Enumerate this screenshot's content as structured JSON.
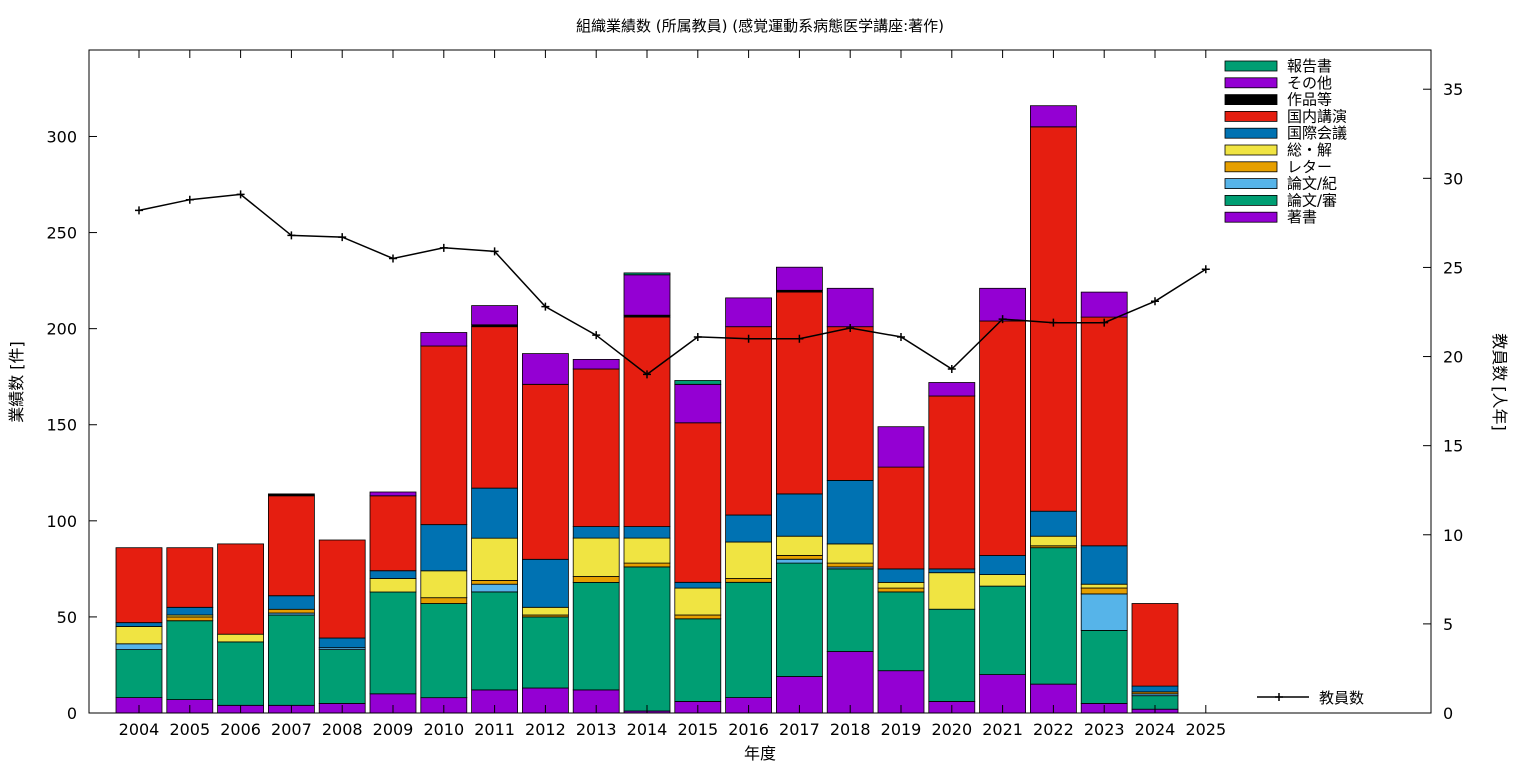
{
  "chart_data": {
    "type": "bar",
    "title": "組織業績数 (所属教員) (感覚運動系病態医学講座:著作)",
    "xlabel": "年度",
    "ylabel": "業績数 [件]",
    "y2label": "教員数 [人年]",
    "categories": [
      "2004",
      "2005",
      "2006",
      "2007",
      "2008",
      "2009",
      "2010",
      "2011",
      "2012",
      "2013",
      "2014",
      "2015",
      "2016",
      "2017",
      "2018",
      "2019",
      "2020",
      "2021",
      "2022",
      "2023",
      "2024",
      "2025"
    ],
    "ylim": [
      0,
      345
    ],
    "y2lim": [
      0,
      37.2
    ],
    "yticks": [
      0,
      50,
      100,
      150,
      200,
      250,
      300
    ],
    "y2ticks": [
      0,
      5,
      10,
      15,
      20,
      25,
      30,
      35
    ],
    "legend_position": "top-right",
    "stacked": true,
    "series": [
      {
        "name": "著書",
        "color": "#9400d3",
        "values": [
          8,
          7,
          4,
          4,
          5,
          10,
          8,
          12,
          13,
          12,
          1,
          6,
          8,
          19,
          32,
          22,
          6,
          20,
          15,
          5,
          2,
          0
        ]
      },
      {
        "name": "論文/審",
        "color": "#009e73",
        "values": [
          25,
          41,
          33,
          47,
          28,
          53,
          49,
          51,
          37,
          56,
          75,
          43,
          60,
          59,
          43,
          41,
          48,
          46,
          71,
          38,
          7,
          0
        ]
      },
      {
        "name": "論文/紀",
        "color": "#56b4e9",
        "values": [
          3,
          0,
          0,
          1,
          1,
          0,
          0,
          4,
          0,
          0,
          0,
          0,
          0,
          2,
          1,
          0,
          0,
          0,
          0,
          19,
          1,
          0
        ]
      },
      {
        "name": "レター",
        "color": "#e69f00",
        "values": [
          0,
          2,
          0,
          2,
          0,
          0,
          3,
          2,
          1,
          3,
          2,
          2,
          2,
          2,
          2,
          2,
          0,
          0,
          1,
          3,
          1,
          0
        ]
      },
      {
        "name": "総・解",
        "color": "#f0e442",
        "values": [
          9,
          1,
          4,
          0,
          0,
          7,
          14,
          22,
          4,
          20,
          13,
          14,
          19,
          10,
          10,
          3,
          19,
          6,
          5,
          2,
          0,
          0
        ]
      },
      {
        "name": "国際会議",
        "color": "#0072b2",
        "values": [
          2,
          4,
          0,
          7,
          5,
          4,
          24,
          26,
          25,
          6,
          6,
          3,
          14,
          22,
          33,
          7,
          2,
          10,
          13,
          20,
          3,
          0
        ]
      },
      {
        "name": "国内講演",
        "color": "#e51e10",
        "values": [
          39,
          31,
          47,
          52,
          51,
          39,
          93,
          84,
          91,
          82,
          109,
          83,
          98,
          105,
          80,
          53,
          90,
          122,
          200,
          119,
          43,
          0
        ]
      },
      {
        "name": "作品等",
        "color": "#000000",
        "values": [
          0,
          0,
          0,
          1,
          0,
          0,
          0,
          1,
          0,
          0,
          1,
          0,
          0,
          1,
          0,
          0,
          0,
          0,
          0,
          0,
          0,
          0
        ]
      },
      {
        "name": "その他",
        "color": "#9400d3",
        "values": [
          0,
          0,
          0,
          0,
          0,
          2,
          7,
          10,
          16,
          5,
          21,
          20,
          15,
          12,
          20,
          21,
          7,
          17,
          11,
          13,
          0,
          0
        ]
      },
      {
        "name": "報告書",
        "color": "#009e73",
        "values": [
          0,
          0,
          0,
          0,
          0,
          0,
          0,
          0,
          0,
          0,
          1,
          2,
          0,
          0,
          0,
          0,
          0,
          0,
          0,
          0,
          0,
          0
        ]
      }
    ],
    "line_series": {
      "name": "教員数",
      "axis": "y2",
      "color": "#000000",
      "values": [
        28.2,
        28.8,
        29.1,
        26.8,
        26.7,
        25.5,
        26.1,
        25.9,
        22.8,
        21.2,
        19.0,
        21.1,
        21.0,
        21.0,
        21.6,
        21.1,
        19.3,
        22.1,
        21.9,
        21.9,
        23.1,
        24.9
      ]
    }
  }
}
